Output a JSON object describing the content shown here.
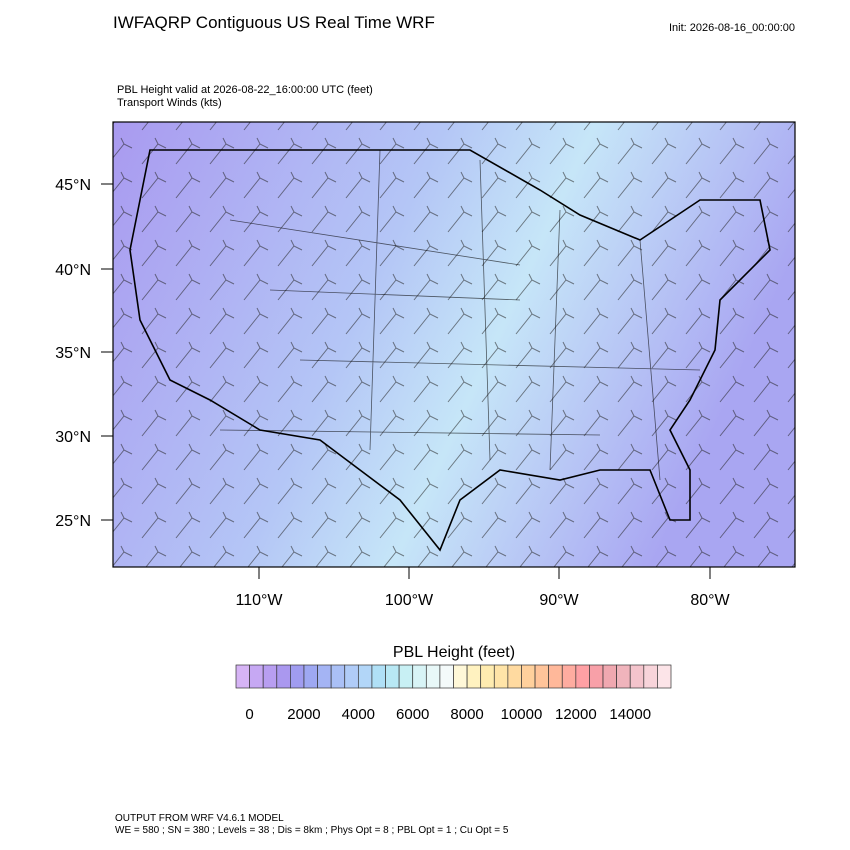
{
  "header": {
    "title": "IWFAQRP Contiguous US Real Time WRF",
    "init": "Init: 2026-08-16_00:00:00"
  },
  "subtitle": [
    "PBL Height valid at 2026-08-22_16:00:00 UTC   (feet)",
    "Transport Winds   (kts)"
  ],
  "map": {
    "lat_labels": [
      "45°N",
      "40°N",
      "35°N",
      "30°N",
      "25°N"
    ],
    "lon_labels": [
      "110°W",
      "100°W",
      "90°W",
      "80°W"
    ]
  },
  "colorbar": {
    "title": "PBL Height  (feet)",
    "ticks": [
      0,
      2000,
      4000,
      6000,
      8000,
      10000,
      12000,
      14000
    ],
    "colors": [
      "#d6b4f5",
      "#c6a8f3",
      "#b89ef1",
      "#aa98ef",
      "#a09cf0",
      "#9ea8f2",
      "#a4b4f4",
      "#aac0f6",
      "#b0ccf8",
      "#b2d6f8",
      "#b0e0f6",
      "#b8e8f4",
      "#c8f0f4",
      "#d8f4f6",
      "#e8f8f8",
      "#f4fafa",
      "#fff8d8",
      "#fff2c0",
      "#ffecb0",
      "#ffe4a8",
      "#ffdaa0",
      "#ffd09c",
      "#ffc49a",
      "#ffb89a",
      "#ffaca0",
      "#ffa0a4",
      "#f8a0a8",
      "#f0a8b0",
      "#f0b4bc",
      "#f4c4cc",
      "#f8d4da",
      "#fce4e8"
    ]
  },
  "footer": [
    "OUTPUT FROM WRF V4.6.1 MODEL",
    "WE = 580 ; SN = 380 ; Levels = 38 ; Dis = 8km ; Phys Opt = 8 ; PBL Opt = 1 ; Cu Opt = 5"
  ]
}
